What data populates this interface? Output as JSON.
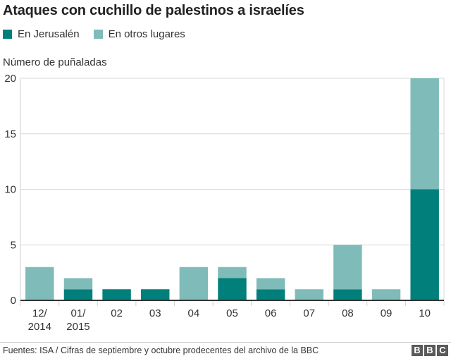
{
  "chart_data": {
    "type": "bar",
    "stacked": true,
    "title": "Ataques con cuchillo de palestinos a israelíes",
    "xlabel": "",
    "ylabel": "Número de puñaladas",
    "ylim": [
      0,
      20
    ],
    "yticks": [
      0,
      5,
      10,
      15,
      20
    ],
    "grid": true,
    "legend_position": "top-left",
    "categories": [
      [
        "12/",
        "2014"
      ],
      [
        "01/",
        "2015"
      ],
      [
        "02"
      ],
      [
        "03"
      ],
      [
        "04"
      ],
      [
        "05"
      ],
      [
        "06"
      ],
      [
        "07"
      ],
      [
        "08"
      ],
      [
        "09"
      ],
      [
        "10"
      ]
    ],
    "series": [
      {
        "name": "En Jerusalén",
        "color": "#007f7b",
        "values": [
          0,
          1,
          1,
          1,
          0,
          2,
          1,
          0,
          1,
          0,
          10
        ]
      },
      {
        "name": "En otros lugares",
        "color": "#7fbbb8",
        "values": [
          3,
          1,
          0,
          0,
          3,
          1,
          1,
          1,
          4,
          1,
          10
        ]
      }
    ]
  },
  "footer": {
    "source": "Fuentes: ISA / Cifras de septiembre y octubre prodecentes del archivo de la BBC",
    "logo_letters": [
      "B",
      "B",
      "C"
    ]
  }
}
